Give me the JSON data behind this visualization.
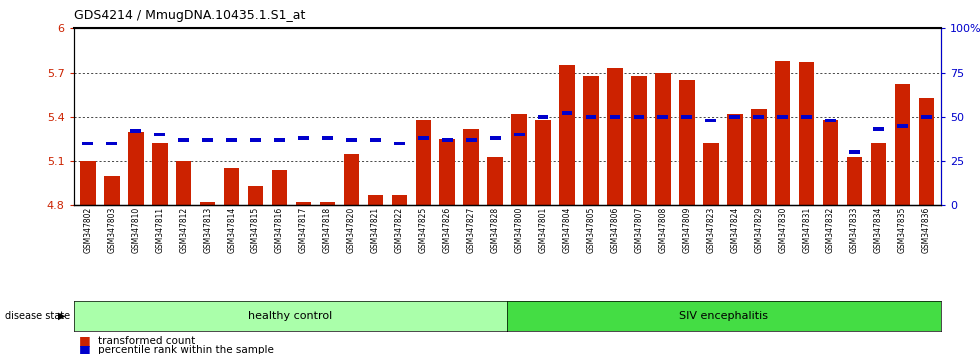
{
  "title": "GDS4214 / MmugDNA.10435.1.S1_at",
  "samples": [
    "GSM347802",
    "GSM347803",
    "GSM347810",
    "GSM347811",
    "GSM347812",
    "GSM347813",
    "GSM347814",
    "GSM347815",
    "GSM347816",
    "GSM347817",
    "GSM347818",
    "GSM347820",
    "GSM347821",
    "GSM347822",
    "GSM347825",
    "GSM347826",
    "GSM347827",
    "GSM347828",
    "GSM347800",
    "GSM347801",
    "GSM347804",
    "GSM347805",
    "GSM347806",
    "GSM347807",
    "GSM347808",
    "GSM347809",
    "GSM347823",
    "GSM347824",
    "GSM347829",
    "GSM347830",
    "GSM347831",
    "GSM347832",
    "GSM347833",
    "GSM347834",
    "GSM347835",
    "GSM347836"
  ],
  "bar_values": [
    5.1,
    5.0,
    5.3,
    5.22,
    5.1,
    4.82,
    5.05,
    4.93,
    5.04,
    4.82,
    4.82,
    5.15,
    4.87,
    4.87,
    5.38,
    5.25,
    5.32,
    5.13,
    5.42,
    5.38,
    5.75,
    5.68,
    5.73,
    5.68,
    5.7,
    5.65,
    5.22,
    5.42,
    5.45,
    5.78,
    5.77,
    5.38,
    5.13,
    5.22,
    5.62,
    5.53
  ],
  "percentile_values": [
    35,
    35,
    42,
    40,
    37,
    37,
    37,
    37,
    37,
    38,
    38,
    37,
    37,
    35,
    38,
    37,
    37,
    38,
    40,
    50,
    52,
    50,
    50,
    50,
    50,
    50,
    48,
    50,
    50,
    50,
    50,
    48,
    30,
    43,
    45,
    50
  ],
  "group_labels": [
    "healthy control",
    "SIV encephalitis"
  ],
  "group_split": 18,
  "group_colors": [
    "#AAFFAA",
    "#44DD44"
  ],
  "ymin": 4.8,
  "ymax": 6.0,
  "yticks": [
    4.8,
    5.1,
    5.4,
    5.7,
    6.0
  ],
  "ytick_labels": [
    "4.8",
    "5.1",
    "5.4",
    "5.7",
    "6"
  ],
  "right_yticks": [
    0,
    25,
    50,
    75,
    100
  ],
  "right_ytick_labels": [
    "0",
    "25",
    "50",
    "75",
    "100%"
  ],
  "bar_color": "#CC2200",
  "percentile_color": "#0000CC",
  "background_color": "#FFFFFF",
  "grid_lines": [
    5.1,
    5.4,
    5.7
  ]
}
